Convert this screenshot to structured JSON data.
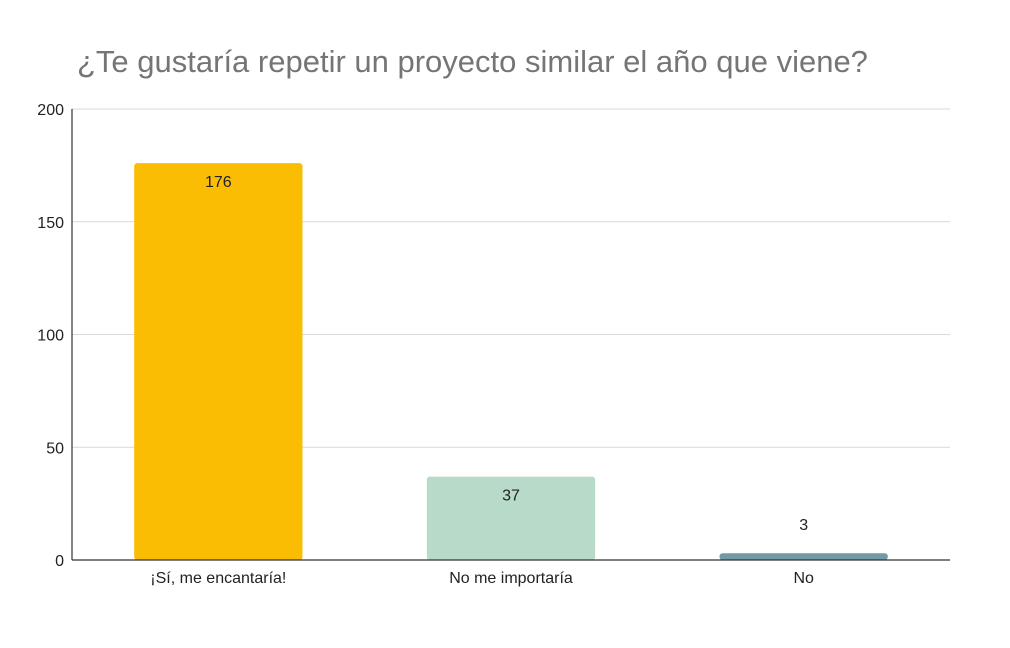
{
  "chart_data": {
    "type": "bar",
    "title": "¿Te gustaría repetir un proyecto similar el año que viene?",
    "xlabel": "",
    "ylabel": "",
    "categories": [
      "¡Sí, me encantaría!",
      "No me importaría",
      "No"
    ],
    "values": [
      176,
      37,
      3
    ],
    "data_labels": [
      "176",
      "37",
      "3"
    ],
    "colors": [
      "#fbbc04",
      "#b7dbc8",
      "#6f9aa6"
    ],
    "ylim": [
      0,
      200
    ],
    "yticks": [
      0,
      50,
      100,
      150,
      200
    ],
    "ytick_labels": [
      "0",
      "50",
      "100",
      "150",
      "200"
    ],
    "grid": true,
    "legend": "none"
  }
}
